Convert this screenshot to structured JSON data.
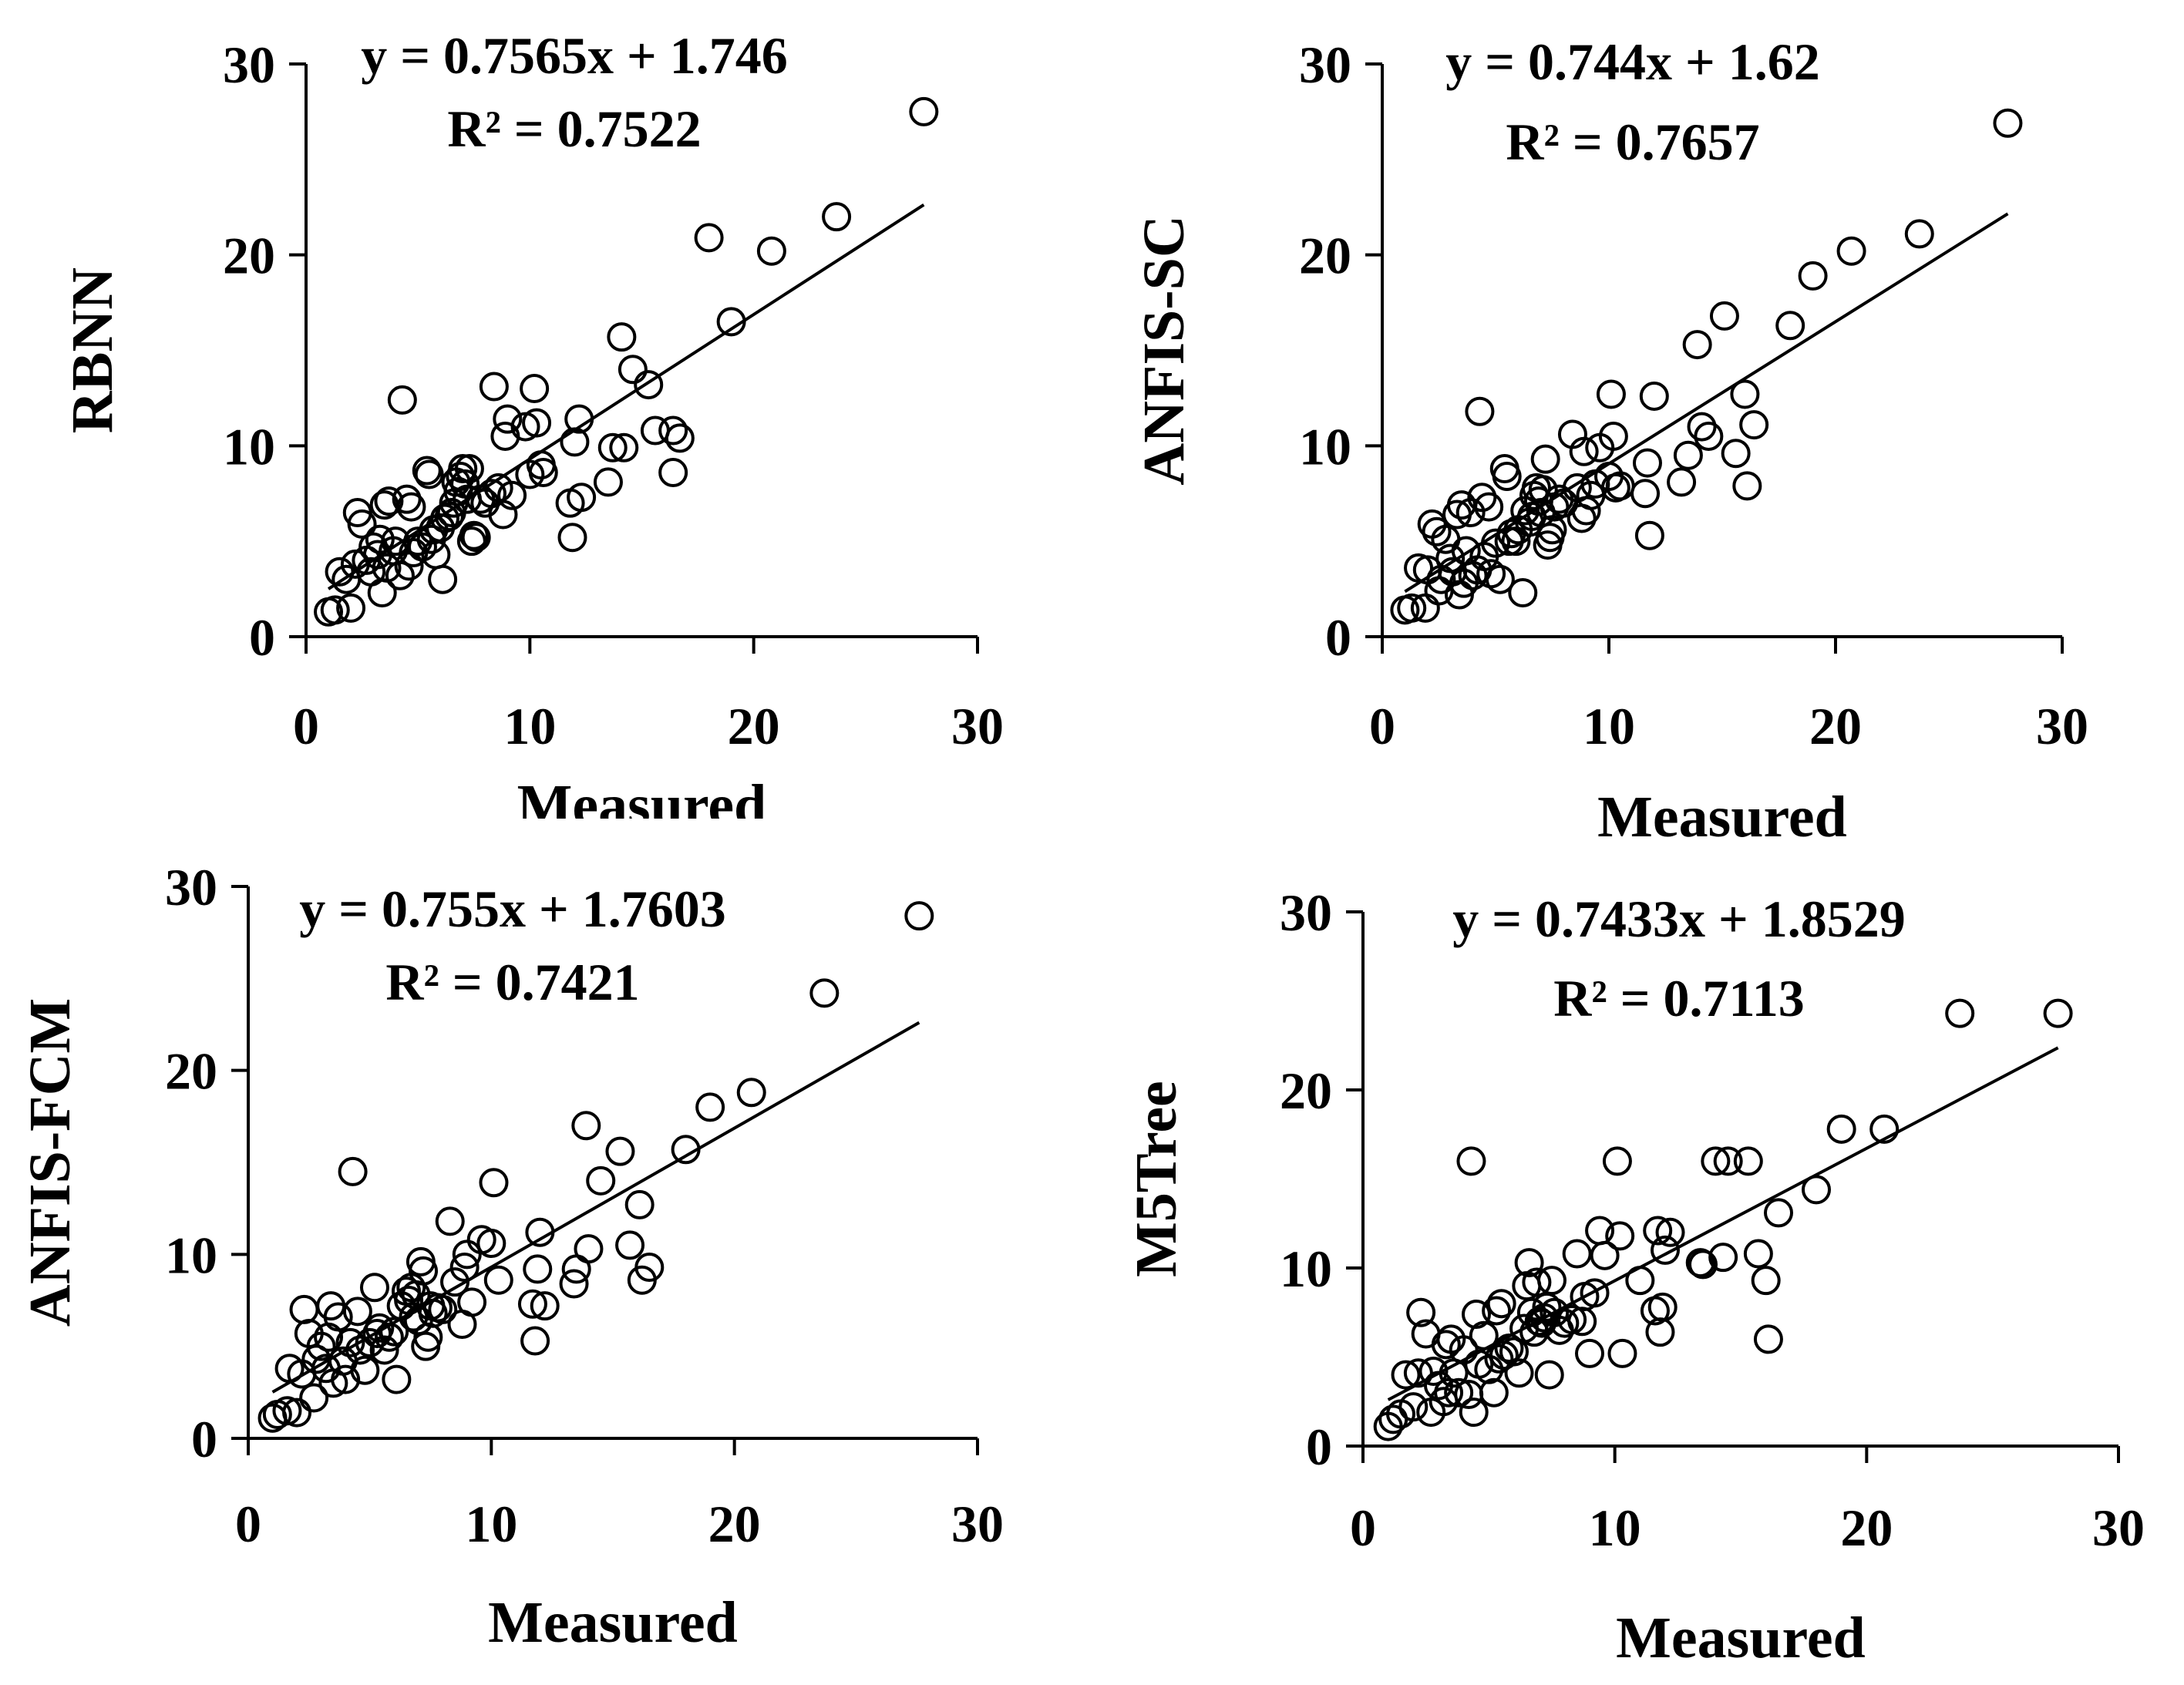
{
  "chart_data": [
    {
      "type": "scatter",
      "ylabel": "RBNN",
      "xlabel": "Measured",
      "xlim": [
        0,
        30
      ],
      "ylim": [
        0,
        30
      ],
      "xticks": [
        "0",
        "10",
        "20",
        "30"
      ],
      "yticks": [
        "0",
        "10",
        "20",
        "30"
      ],
      "equation": "y = 0.7565x + 1.746",
      "r2": "R² = 0.7522",
      "trend": {
        "slope": 0.7565,
        "intercept": 1.746
      },
      "points": [
        [
          1.0,
          1.3
        ],
        [
          1.3,
          1.4
        ],
        [
          2.0,
          1.5
        ],
        [
          1.5,
          3.4
        ],
        [
          1.8,
          3.0
        ],
        [
          2.2,
          3.8
        ],
        [
          2.3,
          6.5
        ],
        [
          2.5,
          5.9
        ],
        [
          2.7,
          4.0
        ],
        [
          2.9,
          3.4
        ],
        [
          3.0,
          4.7
        ],
        [
          3.2,
          4.3
        ],
        [
          3.3,
          5.1
        ],
        [
          3.4,
          2.3
        ],
        [
          3.5,
          6.9
        ],
        [
          3.6,
          3.6
        ],
        [
          3.7,
          7.1
        ],
        [
          3.9,
          4.5
        ],
        [
          4.0,
          5.0
        ],
        [
          4.2,
          3.2
        ],
        [
          4.3,
          12.4
        ],
        [
          4.5,
          7.2
        ],
        [
          4.6,
          3.7
        ],
        [
          4.7,
          6.8
        ],
        [
          4.8,
          4.4
        ],
        [
          5.0,
          5.0
        ],
        [
          5.2,
          4.7
        ],
        [
          5.4,
          8.7
        ],
        [
          5.5,
          8.5
        ],
        [
          5.6,
          5.1
        ],
        [
          5.7,
          5.6
        ],
        [
          5.8,
          4.3
        ],
        [
          6.0,
          5.7
        ],
        [
          6.1,
          3.0
        ],
        [
          6.2,
          6.2
        ],
        [
          6.4,
          6.3
        ],
        [
          6.5,
          6.5
        ],
        [
          6.6,
          7.0
        ],
        [
          6.7,
          8.1
        ],
        [
          6.8,
          7.6
        ],
        [
          6.9,
          8.4
        ],
        [
          7.0,
          8.8
        ],
        [
          7.1,
          8.0
        ],
        [
          7.2,
          7.2
        ],
        [
          7.3,
          8.8
        ],
        [
          7.4,
          5.0
        ],
        [
          7.5,
          5.3
        ],
        [
          7.6,
          5.2
        ],
        [
          7.8,
          7.2
        ],
        [
          8.0,
          7.0
        ],
        [
          8.3,
          7.5
        ],
        [
          8.4,
          13.1
        ],
        [
          8.6,
          7.8
        ],
        [
          8.8,
          6.4
        ],
        [
          8.9,
          10.5
        ],
        [
          9.0,
          11.4
        ],
        [
          9.2,
          7.4
        ],
        [
          9.8,
          11.0
        ],
        [
          10.0,
          8.5
        ],
        [
          10.2,
          13.0
        ],
        [
          10.3,
          11.2
        ],
        [
          10.5,
          9.0
        ],
        [
          10.6,
          8.6
        ],
        [
          11.8,
          7.0
        ],
        [
          11.9,
          5.2
        ],
        [
          12.0,
          10.2
        ],
        [
          12.2,
          11.4
        ],
        [
          12.3,
          7.3
        ],
        [
          13.5,
          8.1
        ],
        [
          13.7,
          9.9
        ],
        [
          14.1,
          15.7
        ],
        [
          14.2,
          9.9
        ],
        [
          14.6,
          14.0
        ],
        [
          15.3,
          13.2
        ],
        [
          15.6,
          10.8
        ],
        [
          16.4,
          8.6
        ],
        [
          16.4,
          10.8
        ],
        [
          16.7,
          10.4
        ],
        [
          18.0,
          20.9
        ],
        [
          19.0,
          16.5
        ],
        [
          20.8,
          20.2
        ],
        [
          23.7,
          22.0
        ],
        [
          27.6,
          27.5
        ]
      ]
    },
    {
      "type": "scatter",
      "ylabel": "ANFIS-SC",
      "xlabel": "Measured",
      "xlim": [
        0,
        30
      ],
      "ylim": [
        0,
        30
      ],
      "xticks": [
        "0",
        "10",
        "20",
        "30"
      ],
      "yticks": [
        "0",
        "10",
        "20",
        "30"
      ],
      "equation": "y = 0.744x + 1.62",
      "r2": "R² = 0.7657",
      "trend": {
        "slope": 0.744,
        "intercept": 1.62
      },
      "points": [
        [
          1.0,
          1.4
        ],
        [
          1.3,
          1.5
        ],
        [
          1.6,
          3.6
        ],
        [
          1.9,
          1.5
        ],
        [
          2.0,
          3.5
        ],
        [
          2.2,
          5.9
        ],
        [
          2.4,
          5.5
        ],
        [
          2.5,
          2.4
        ],
        [
          2.6,
          3.0
        ],
        [
          2.8,
          5.1
        ],
        [
          3.0,
          4.1
        ],
        [
          3.1,
          3.4
        ],
        [
          3.3,
          6.4
        ],
        [
          3.4,
          2.2
        ],
        [
          3.5,
          6.9
        ],
        [
          3.6,
          2.8
        ],
        [
          3.7,
          4.5
        ],
        [
          3.9,
          6.5
        ],
        [
          4.0,
          3.2
        ],
        [
          4.2,
          3.5
        ],
        [
          4.3,
          11.8
        ],
        [
          4.4,
          7.3
        ],
        [
          4.5,
          4.2
        ],
        [
          4.7,
          6.8
        ],
        [
          4.8,
          3.3
        ],
        [
          5.0,
          4.9
        ],
        [
          5.2,
          3.0
        ],
        [
          5.4,
          8.8
        ],
        [
          5.5,
          8.4
        ],
        [
          5.6,
          5.0
        ],
        [
          5.7,
          5.4
        ],
        [
          5.9,
          5.0
        ],
        [
          6.0,
          5.6
        ],
        [
          6.2,
          2.3
        ],
        [
          6.3,
          6.6
        ],
        [
          6.5,
          6.0
        ],
        [
          6.6,
          6.3
        ],
        [
          6.7,
          7.4
        ],
        [
          6.8,
          7.8
        ],
        [
          6.9,
          7.1
        ],
        [
          7.0,
          6.5
        ],
        [
          7.1,
          7.7
        ],
        [
          7.2,
          9.3
        ],
        [
          7.3,
          4.8
        ],
        [
          7.4,
          5.2
        ],
        [
          7.5,
          5.6
        ],
        [
          7.6,
          6.8
        ],
        [
          7.8,
          7.2
        ],
        [
          8.0,
          7.0
        ],
        [
          8.4,
          10.6
        ],
        [
          8.6,
          7.8
        ],
        [
          8.8,
          6.2
        ],
        [
          8.9,
          9.7
        ],
        [
          9.0,
          6.6
        ],
        [
          9.2,
          7.4
        ],
        [
          9.4,
          8.0
        ],
        [
          9.6,
          9.9
        ],
        [
          10.0,
          8.4
        ],
        [
          10.1,
          12.7
        ],
        [
          10.2,
          10.5
        ],
        [
          10.3,
          7.8
        ],
        [
          10.5,
          7.9
        ],
        [
          11.6,
          7.5
        ],
        [
          11.7,
          9.1
        ],
        [
          11.8,
          5.3
        ],
        [
          12.0,
          12.6
        ],
        [
          13.2,
          8.1
        ],
        [
          13.5,
          9.5
        ],
        [
          13.9,
          15.3
        ],
        [
          14.1,
          11.0
        ],
        [
          14.4,
          10.5
        ],
        [
          15.1,
          16.8
        ],
        [
          15.6,
          9.6
        ],
        [
          16.0,
          12.7
        ],
        [
          16.1,
          7.9
        ],
        [
          16.4,
          11.1
        ],
        [
          18.0,
          16.3
        ],
        [
          19.0,
          18.9
        ],
        [
          20.7,
          20.2
        ],
        [
          23.7,
          21.1
        ],
        [
          27.6,
          26.9
        ]
      ]
    },
    {
      "type": "scatter",
      "ylabel": "ANFIS-FCM",
      "xlabel": "Measured",
      "xlim": [
        0,
        30
      ],
      "ylim": [
        0,
        30
      ],
      "xticks": [
        "0",
        "10",
        "20",
        "30"
      ],
      "yticks": [
        "0",
        "10",
        "20",
        "30"
      ],
      "equation": "y = 0.755x + 1.7603",
      "r2": "R² = 0.7421",
      "trend": {
        "slope": 0.755,
        "intercept": 1.7603
      },
      "points": [
        [
          1.0,
          1.1
        ],
        [
          1.2,
          1.3
        ],
        [
          1.6,
          1.5
        ],
        [
          1.7,
          3.8
        ],
        [
          2.0,
          1.4
        ],
        [
          2.2,
          3.5
        ],
        [
          2.3,
          7.0
        ],
        [
          2.5,
          5.7
        ],
        [
          2.7,
          2.2
        ],
        [
          2.8,
          4.3
        ],
        [
          3.0,
          5.0
        ],
        [
          3.2,
          3.8
        ],
        [
          3.3,
          5.5
        ],
        [
          3.4,
          7.2
        ],
        [
          3.5,
          3.0
        ],
        [
          3.7,
          6.6
        ],
        [
          3.9,
          4.2
        ],
        [
          4.0,
          3.2
        ],
        [
          4.2,
          5.2
        ],
        [
          4.3,
          14.5
        ],
        [
          4.5,
          6.9
        ],
        [
          4.6,
          4.8
        ],
        [
          4.8,
          3.7
        ],
        [
          5.0,
          5.2
        ],
        [
          5.2,
          8.2
        ],
        [
          5.3,
          5.7
        ],
        [
          5.4,
          6.0
        ],
        [
          5.6,
          4.8
        ],
        [
          5.8,
          5.5
        ],
        [
          6.0,
          5.8
        ],
        [
          6.1,
          3.2
        ],
        [
          6.3,
          7.2
        ],
        [
          6.5,
          8.0
        ],
        [
          6.6,
          7.5
        ],
        [
          6.7,
          8.2
        ],
        [
          6.8,
          6.6
        ],
        [
          6.9,
          7.8
        ],
        [
          7.0,
          6.4
        ],
        [
          7.1,
          9.6
        ],
        [
          7.2,
          9.1
        ],
        [
          7.3,
          5.0
        ],
        [
          7.4,
          5.5
        ],
        [
          7.5,
          7.2
        ],
        [
          7.6,
          6.8
        ],
        [
          7.8,
          7.1
        ],
        [
          8.0,
          7.0
        ],
        [
          8.3,
          11.8
        ],
        [
          8.5,
          8.5
        ],
        [
          8.8,
          6.2
        ],
        [
          8.9,
          9.3
        ],
        [
          9.0,
          10.0
        ],
        [
          9.2,
          7.4
        ],
        [
          9.6,
          10.8
        ],
        [
          10.0,
          10.6
        ],
        [
          10.1,
          13.9
        ],
        [
          10.3,
          8.6
        ],
        [
          11.7,
          7.3
        ],
        [
          11.8,
          5.3
        ],
        [
          11.9,
          9.2
        ],
        [
          12.0,
          11.2
        ],
        [
          12.2,
          7.2
        ],
        [
          13.4,
          8.4
        ],
        [
          13.5,
          9.2
        ],
        [
          13.9,
          17.0
        ],
        [
          14.0,
          10.3
        ],
        [
          14.5,
          14.0
        ],
        [
          15.3,
          15.6
        ],
        [
          15.7,
          10.5
        ],
        [
          16.1,
          12.7
        ],
        [
          16.2,
          8.6
        ],
        [
          16.5,
          9.3
        ],
        [
          18.0,
          15.7
        ],
        [
          19.0,
          18.0
        ],
        [
          20.7,
          18.8
        ],
        [
          23.7,
          24.2
        ],
        [
          27.6,
          28.4
        ]
      ]
    },
    {
      "type": "scatter",
      "ylabel": "M5Tree",
      "xlabel": "Measured",
      "xlim": [
        0,
        30
      ],
      "ylim": [
        0,
        30
      ],
      "xticks": [
        "0",
        "10",
        "20",
        "30"
      ],
      "yticks": [
        "0",
        "10",
        "20",
        "30"
      ],
      "equation": "y = 0.7433x + 1.8529",
      "r2": "R² = 0.7113",
      "trend": {
        "slope": 0.7433,
        "intercept": 1.8529
      },
      "points": [
        [
          1.0,
          1.1
        ],
        [
          1.2,
          1.5
        ],
        [
          1.5,
          1.8
        ],
        [
          1.7,
          4.0
        ],
        [
          2.0,
          2.2
        ],
        [
          2.2,
          4.1
        ],
        [
          2.3,
          7.5
        ],
        [
          2.5,
          6.3
        ],
        [
          2.7,
          1.9
        ],
        [
          2.8,
          4.2
        ],
        [
          3.0,
          3.4
        ],
        [
          3.2,
          2.5
        ],
        [
          3.3,
          5.7
        ],
        [
          3.4,
          3.0
        ],
        [
          3.5,
          6.0
        ],
        [
          3.6,
          4.1
        ],
        [
          3.8,
          3.0
        ],
        [
          4.0,
          5.4
        ],
        [
          4.2,
          2.9
        ],
        [
          4.3,
          16.0
        ],
        [
          4.4,
          1.9
        ],
        [
          4.5,
          7.4
        ],
        [
          4.6,
          4.6
        ],
        [
          4.8,
          6.2
        ],
        [
          5.0,
          4.3
        ],
        [
          5.2,
          3.0
        ],
        [
          5.3,
          7.6
        ],
        [
          5.4,
          4.9
        ],
        [
          5.5,
          8.0
        ],
        [
          5.6,
          5.1
        ],
        [
          5.8,
          5.5
        ],
        [
          6.0,
          5.3
        ],
        [
          6.2,
          4.1
        ],
        [
          6.4,
          6.6
        ],
        [
          6.5,
          9.0
        ],
        [
          6.6,
          10.3
        ],
        [
          6.7,
          7.5
        ],
        [
          6.8,
          6.4
        ],
        [
          6.9,
          9.2
        ],
        [
          7.0,
          7.0
        ],
        [
          7.1,
          6.9
        ],
        [
          7.2,
          7.2
        ],
        [
          7.3,
          7.8
        ],
        [
          7.4,
          4.0
        ],
        [
          7.5,
          9.3
        ],
        [
          7.6,
          7.5
        ],
        [
          7.8,
          6.5
        ],
        [
          8.0,
          6.9
        ],
        [
          8.3,
          7.1
        ],
        [
          8.5,
          10.8
        ],
        [
          8.7,
          7.0
        ],
        [
          8.8,
          8.4
        ],
        [
          9.0,
          5.2
        ],
        [
          9.2,
          8.6
        ],
        [
          9.4,
          12.1
        ],
        [
          9.6,
          10.7
        ],
        [
          10.1,
          16.0
        ],
        [
          10.2,
          11.8
        ],
        [
          10.3,
          5.2
        ],
        [
          11.0,
          9.3
        ],
        [
          11.6,
          7.6
        ],
        [
          11.7,
          12.1
        ],
        [
          11.8,
          6.4
        ],
        [
          11.9,
          7.8
        ],
        [
          12.0,
          11.0
        ],
        [
          12.2,
          12.0
        ],
        [
          13.4,
          10.3
        ],
        [
          13.5,
          10.2
        ],
        [
          14.0,
          16.0
        ],
        [
          14.3,
          10.6
        ],
        [
          14.5,
          16.0
        ],
        [
          15.3,
          16.0
        ],
        [
          15.7,
          10.8
        ],
        [
          16.0,
          9.3
        ],
        [
          16.1,
          6.0
        ],
        [
          16.5,
          13.1
        ],
        [
          18.0,
          14.4
        ],
        [
          19.0,
          17.8
        ],
        [
          20.7,
          17.8
        ],
        [
          23.7,
          24.3
        ],
        [
          27.6,
          24.3
        ]
      ]
    }
  ]
}
